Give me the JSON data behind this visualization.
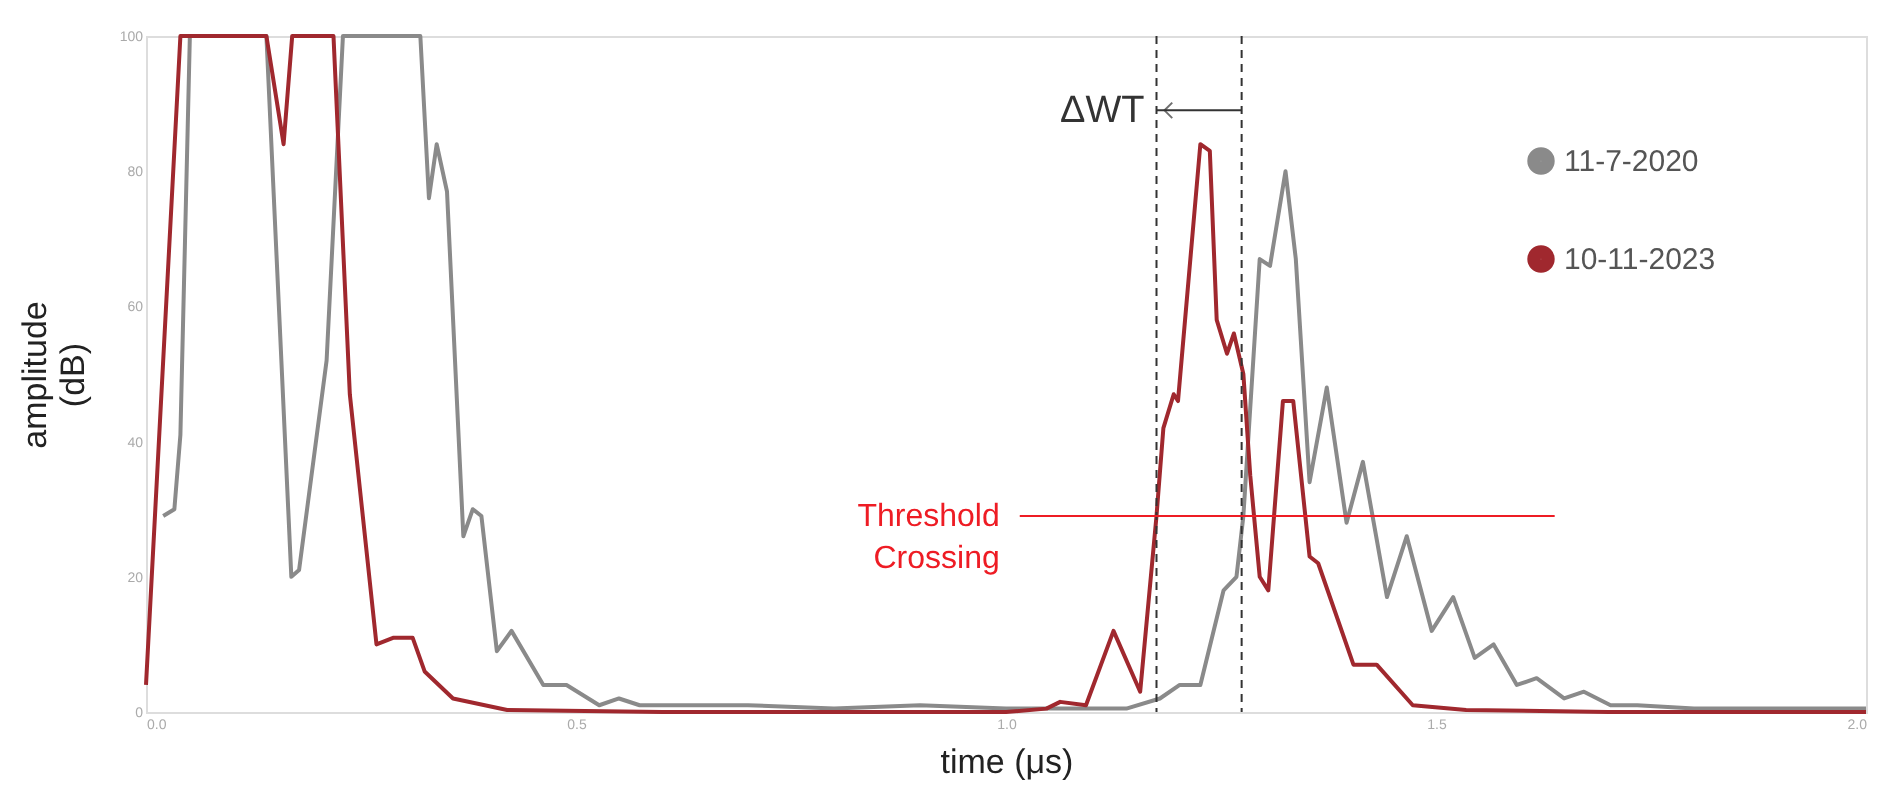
{
  "chart_data": {
    "type": "line",
    "xlabel": "time (μs)",
    "ylabel": "amplitude (dB)",
    "xlim": [
      0,
      2
    ],
    "xticks": [
      {
        "value": 0,
        "label": "0.0"
      },
      {
        "value": 0.5,
        "label": "0.5"
      },
      {
        "value": 1,
        "label": "1.0"
      },
      {
        "value": 1.5,
        "label": "1.5"
      },
      {
        "value": 2,
        "label": "2.0"
      }
    ],
    "ylim": [
      0,
      100
    ],
    "yticks": [
      0,
      20,
      40,
      60,
      80,
      100
    ],
    "grid": false,
    "legend": "top right",
    "marker": "none",
    "line_style": "solid",
    "series": [
      {
        "name": "11-7-2020",
        "color": "#8a8a8a",
        "x": [
          0.02,
          0.033,
          0.04,
          0.051,
          0.14,
          0.169,
          0.178,
          0.21,
          0.229,
          0.319,
          0.329,
          0.338,
          0.35,
          0.369,
          0.38,
          0.39,
          0.408,
          0.425,
          0.462,
          0.489,
          0.527,
          0.55,
          0.574,
          0.598,
          0.7,
          0.8,
          0.9,
          1.0,
          1.1,
          1.14,
          1.179,
          1.202,
          1.226,
          1.253,
          1.268,
          1.276,
          1.295,
          1.307,
          1.325,
          1.337,
          1.353,
          1.373,
          1.396,
          1.415,
          1.443,
          1.466,
          1.495,
          1.52,
          1.545,
          1.567,
          1.594,
          1.617,
          1.649,
          1.672,
          1.703,
          1.734,
          1.8,
          1.9,
          2.0
        ],
        "values": [
          29,
          30,
          41,
          100,
          100,
          20,
          21,
          52,
          100,
          100,
          76,
          84,
          77,
          26,
          30,
          29,
          9,
          12,
          4,
          4,
          1,
          2,
          1,
          1,
          1,
          0.5,
          1,
          0.5,
          0.5,
          0.5,
          2,
          4,
          4,
          18,
          20,
          29,
          67,
          66,
          80,
          67,
          34,
          48,
          28,
          37,
          17,
          26,
          12,
          17,
          8,
          10,
          4,
          5,
          2,
          3,
          1,
          1,
          0.5,
          0.5,
          0.5
        ]
      },
      {
        "name": "10-11-2023",
        "color": "#a0282e",
        "x": [
          0.0,
          0.04,
          0.14,
          0.16,
          0.17,
          0.218,
          0.237,
          0.268,
          0.288,
          0.31,
          0.324,
          0.357,
          0.42,
          0.6,
          0.8,
          1.0,
          1.047,
          1.063,
          1.093,
          1.125,
          1.156,
          1.175,
          1.183,
          1.195,
          1.2,
          1.226,
          1.237,
          1.245,
          1.257,
          1.265,
          1.276,
          1.284,
          1.295,
          1.305,
          1.322,
          1.334,
          1.353,
          1.363,
          1.404,
          1.431,
          1.473,
          1.535,
          1.7,
          2.0
        ],
        "values": [
          4,
          100,
          100,
          84,
          100,
          100,
          47,
          10,
          11,
          11,
          6,
          2,
          0.3,
          0,
          0,
          0,
          0.5,
          1.5,
          1,
          12,
          3,
          29,
          42,
          47,
          46,
          84,
          83,
          58,
          53,
          56,
          50,
          35,
          20,
          18,
          46,
          46,
          23,
          22,
          7,
          7,
          1,
          0.3,
          0,
          0
        ]
      }
    ],
    "ref_lines": [
      {
        "axis": "x",
        "value": 1.175,
        "color": "#333333",
        "line_style": "dashed"
      },
      {
        "axis": "x",
        "value": 1.274,
        "color": "#333333",
        "line_style": "dashed"
      },
      {
        "axis": "y",
        "value": 29,
        "label": "Threshold Crossing",
        "color": "#ee1c24",
        "line_style": "solid"
      }
    ],
    "annotations": [
      {
        "text": "ΔWT",
        "x": 1.175,
        "y": 89
      }
    ]
  }
}
